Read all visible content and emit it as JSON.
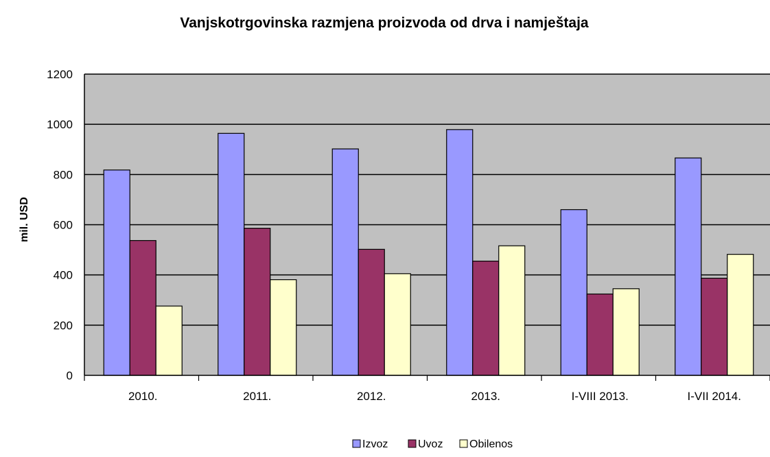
{
  "chart_data": {
    "type": "bar",
    "title": "Vanjskotrgovinska razmjena proizvoda od drva i namještaja",
    "ylabel": "mil. USD",
    "xlabel": "",
    "categories": [
      "2010.",
      "2011.",
      "2012.",
      "2013.",
      "I-VIII 2013.",
      "I-VII 2014."
    ],
    "series": [
      {
        "name": "Izvoz",
        "color": "#9999ff",
        "values": [
          818,
          964,
          902,
          979,
          660,
          866
        ]
      },
      {
        "name": "Uvoz",
        "color": "#993366",
        "values": [
          537,
          586,
          502,
          455,
          324,
          387
        ]
      },
      {
        "name": "Obilenos",
        "color": "#ffffcc",
        "values": [
          276,
          381,
          405,
          516,
          345,
          482
        ]
      }
    ],
    "ylim": [
      0,
      1200
    ],
    "yticks": [
      "0",
      "200",
      "400",
      "600",
      "800",
      "1000",
      "1200"
    ],
    "grid": true,
    "plot_background": "#c0c0c0",
    "legend_position": "bottom"
  }
}
